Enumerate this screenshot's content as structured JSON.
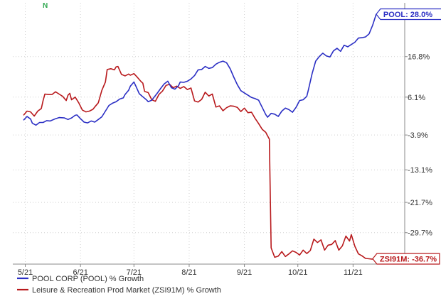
{
  "brand_mark": "N",
  "colors": {
    "pool": "#2b2fc4",
    "zsi": "#b8191c",
    "axis": "#555555",
    "text": "#333333"
  },
  "chart_data": {
    "type": "line",
    "xlabel": "",
    "ylabel": "",
    "ylim": [
      -38,
      31
    ],
    "y_ticks": [
      "16.8%",
      "6.1%",
      "-3.9%",
      "-13.1%",
      "-21.7%",
      "-29.7%"
    ],
    "y_tick_values": [
      16.8,
      6.1,
      -3.9,
      -13.1,
      -21.7,
      -29.7
    ],
    "x_ticks": [
      "5/21",
      "6/21",
      "7/21",
      "8/21",
      "9/21",
      "10/21",
      "11/21"
    ],
    "x_tick_values": [
      1,
      32,
      62,
      93,
      124,
      154,
      185
    ],
    "x_range": [
      -6,
      214
    ],
    "legend": {
      "placement": "bottom-left",
      "items": [
        "POOL CORP (POOL) % Growth",
        "Leisure & Recreation Prod Market (ZSI91M) % Growth"
      ]
    },
    "series": [
      {
        "name": "POOL CORP (POOL) % Growth",
        "end_label": "POOL: 28.0%",
        "points": [
          [
            0,
            0
          ],
          [
            2,
            1
          ],
          [
            4,
            0.3
          ],
          [
            5,
            -0.8
          ],
          [
            7,
            -1.3
          ],
          [
            9,
            -0.6
          ],
          [
            11,
            -0.6
          ],
          [
            13,
            -0.1
          ],
          [
            15,
            -0.2
          ],
          [
            18,
            0.4
          ],
          [
            20,
            0.7
          ],
          [
            23,
            0.6
          ],
          [
            25,
            0.2
          ],
          [
            27,
            0.6
          ],
          [
            29,
            1.3
          ],
          [
            30,
            1.4
          ],
          [
            32,
            0.4
          ],
          [
            34,
            -0.5
          ],
          [
            36,
            -0.7
          ],
          [
            38,
            -0.2
          ],
          [
            40,
            -0.5
          ],
          [
            42,
            0.2
          ],
          [
            44,
            0.9
          ],
          [
            46,
            2.4
          ],
          [
            48,
            3.9
          ],
          [
            50,
            4.5
          ],
          [
            52,
            4.9
          ],
          [
            54,
            5.6
          ],
          [
            56,
            5.9
          ],
          [
            57,
            6.8
          ],
          [
            59,
            7.9
          ],
          [
            60,
            9.0
          ],
          [
            62,
            10.1
          ],
          [
            63,
            9.1
          ],
          [
            65,
            7.0
          ],
          [
            67,
            6.2
          ],
          [
            69,
            5.4
          ],
          [
            70,
            4.9
          ],
          [
            72,
            5.3
          ],
          [
            73,
            5.9
          ],
          [
            75,
            7.1
          ],
          [
            77,
            8.4
          ],
          [
            79,
            9.6
          ],
          [
            81,
            10.3
          ],
          [
            83,
            8.6
          ],
          [
            85,
            8.2
          ],
          [
            87,
            9.1
          ],
          [
            88,
            10.1
          ],
          [
            90,
            10.0
          ],
          [
            92,
            10.3
          ],
          [
            94,
            10.9
          ],
          [
            96,
            11.8
          ],
          [
            98,
            13.3
          ],
          [
            100,
            13.4
          ],
          [
            102,
            14.2
          ],
          [
            104,
            13.7
          ],
          [
            106,
            13.9
          ],
          [
            108,
            14.8
          ],
          [
            110,
            15.3
          ],
          [
            112,
            15.6
          ],
          [
            114,
            15.2
          ],
          [
            116,
            13.6
          ],
          [
            118,
            11.4
          ],
          [
            120,
            9.4
          ],
          [
            122,
            7.8
          ],
          [
            124,
            7.2
          ],
          [
            126,
            6.6
          ],
          [
            128,
            6.0
          ],
          [
            130,
            5.7
          ],
          [
            132,
            5.3
          ],
          [
            134,
            3.4
          ],
          [
            136,
            1.5
          ],
          [
            137,
            0.8
          ],
          [
            139,
            1.8
          ],
          [
            141,
            1.6
          ],
          [
            143,
            1.0
          ],
          [
            145,
            2.4
          ],
          [
            147,
            3.2
          ],
          [
            149,
            2.8
          ],
          [
            151,
            2.1
          ],
          [
            153,
            3.4
          ],
          [
            155,
            5.2
          ],
          [
            157,
            5.4
          ],
          [
            159,
            6.3
          ],
          [
            160,
            8.2
          ],
          [
            162,
            12.3
          ],
          [
            164,
            15.6
          ],
          [
            166,
            16.8
          ],
          [
            168,
            17.7
          ],
          [
            170,
            17.0
          ],
          [
            172,
            16.7
          ],
          [
            174,
            18.3
          ],
          [
            176,
            19.0
          ],
          [
            178,
            18.2
          ],
          [
            180,
            19.8
          ],
          [
            182,
            19.4
          ],
          [
            184,
            20.0
          ],
          [
            186,
            20.6
          ],
          [
            188,
            21.7
          ],
          [
            190,
            21.8
          ],
          [
            192,
            22.0
          ],
          [
            194,
            22.8
          ],
          [
            196,
            25.1
          ],
          [
            198,
            28.0
          ]
        ]
      },
      {
        "name": "Leisure & Recreation Prod Market (ZSI91M) % Growth",
        "end_label": "ZSI91M: -36.7%",
        "points": [
          [
            0,
            1.3
          ],
          [
            2,
            2.4
          ],
          [
            4,
            2.2
          ],
          [
            6,
            1.1
          ],
          [
            8,
            2.4
          ],
          [
            10,
            3.1
          ],
          [
            11,
            5.2
          ],
          [
            12,
            6.9
          ],
          [
            14,
            6.8
          ],
          [
            16,
            6.8
          ],
          [
            18,
            7.5
          ],
          [
            20,
            6.9
          ],
          [
            22,
            6.3
          ],
          [
            24,
            5.2
          ],
          [
            25,
            6.6
          ],
          [
            26,
            7.1
          ],
          [
            27,
            5.4
          ],
          [
            29,
            6.1
          ],
          [
            31,
            4.6
          ],
          [
            33,
            2.7
          ],
          [
            35,
            2.2
          ],
          [
            37,
            2.4
          ],
          [
            39,
            2.9
          ],
          [
            40,
            3.5
          ],
          [
            42,
            4.6
          ],
          [
            44,
            7.9
          ],
          [
            46,
            10.1
          ],
          [
            47,
            13.4
          ],
          [
            49,
            13.6
          ],
          [
            51,
            13.3
          ],
          [
            52,
            14.1
          ],
          [
            53,
            14.2
          ],
          [
            55,
            12.1
          ],
          [
            57,
            11.7
          ],
          [
            59,
            12.2
          ],
          [
            60,
            11.9
          ],
          [
            62,
            12.3
          ],
          [
            64,
            11.3
          ],
          [
            66,
            10.2
          ],
          [
            67,
            9.8
          ],
          [
            68,
            7.6
          ],
          [
            70,
            7.3
          ],
          [
            72,
            5.4
          ],
          [
            74,
            5.0
          ],
          [
            76,
            6.8
          ],
          [
            78,
            7.7
          ],
          [
            80,
            9.2
          ],
          [
            82,
            9.5
          ],
          [
            84,
            8.6
          ],
          [
            86,
            9.0
          ],
          [
            88,
            8.4
          ],
          [
            90,
            8.9
          ],
          [
            92,
            8.1
          ],
          [
            94,
            8.5
          ],
          [
            96,
            5.1
          ],
          [
            98,
            4.8
          ],
          [
            100,
            5.5
          ],
          [
            102,
            7.4
          ],
          [
            104,
            6.4
          ],
          [
            106,
            6.9
          ],
          [
            108,
            3.5
          ],
          [
            110,
            3.8
          ],
          [
            112,
            2.5
          ],
          [
            114,
            3.3
          ],
          [
            116,
            3.8
          ],
          [
            118,
            3.7
          ],
          [
            120,
            3.4
          ],
          [
            122,
            2.3
          ],
          [
            124,
            3.2
          ],
          [
            126,
            2.0
          ],
          [
            128,
            2.1
          ],
          [
            130,
            0.5
          ],
          [
            132,
            -0.9
          ],
          [
            134,
            -2.4
          ],
          [
            136,
            -3.2
          ],
          [
            138,
            -5.0
          ],
          [
            139,
            -33.7
          ],
          [
            141,
            -36.2
          ],
          [
            143,
            -35.9
          ],
          [
            145,
            -34.7
          ],
          [
            147,
            -36.0
          ],
          [
            149,
            -35.3
          ],
          [
            151,
            -34.5
          ],
          [
            153,
            -34.9
          ],
          [
            155,
            -35.6
          ],
          [
            157,
            -34.3
          ],
          [
            159,
            -35.2
          ],
          [
            161,
            -34.4
          ],
          [
            163,
            -31.4
          ],
          [
            165,
            -32.3
          ],
          [
            167,
            -31.6
          ],
          [
            169,
            -34.3
          ],
          [
            171,
            -33.0
          ],
          [
            173,
            -32.8
          ],
          [
            175,
            -31.8
          ],
          [
            177,
            -34.3
          ],
          [
            179,
            -33.2
          ],
          [
            181,
            -30.6
          ],
          [
            183,
            -31.9
          ],
          [
            184,
            -30.2
          ],
          [
            186,
            -33.3
          ],
          [
            188,
            -35.3
          ],
          [
            190,
            -35.8
          ],
          [
            192,
            -36.5
          ],
          [
            194,
            -36.6
          ],
          [
            196,
            -36.7
          ]
        ]
      }
    ]
  }
}
